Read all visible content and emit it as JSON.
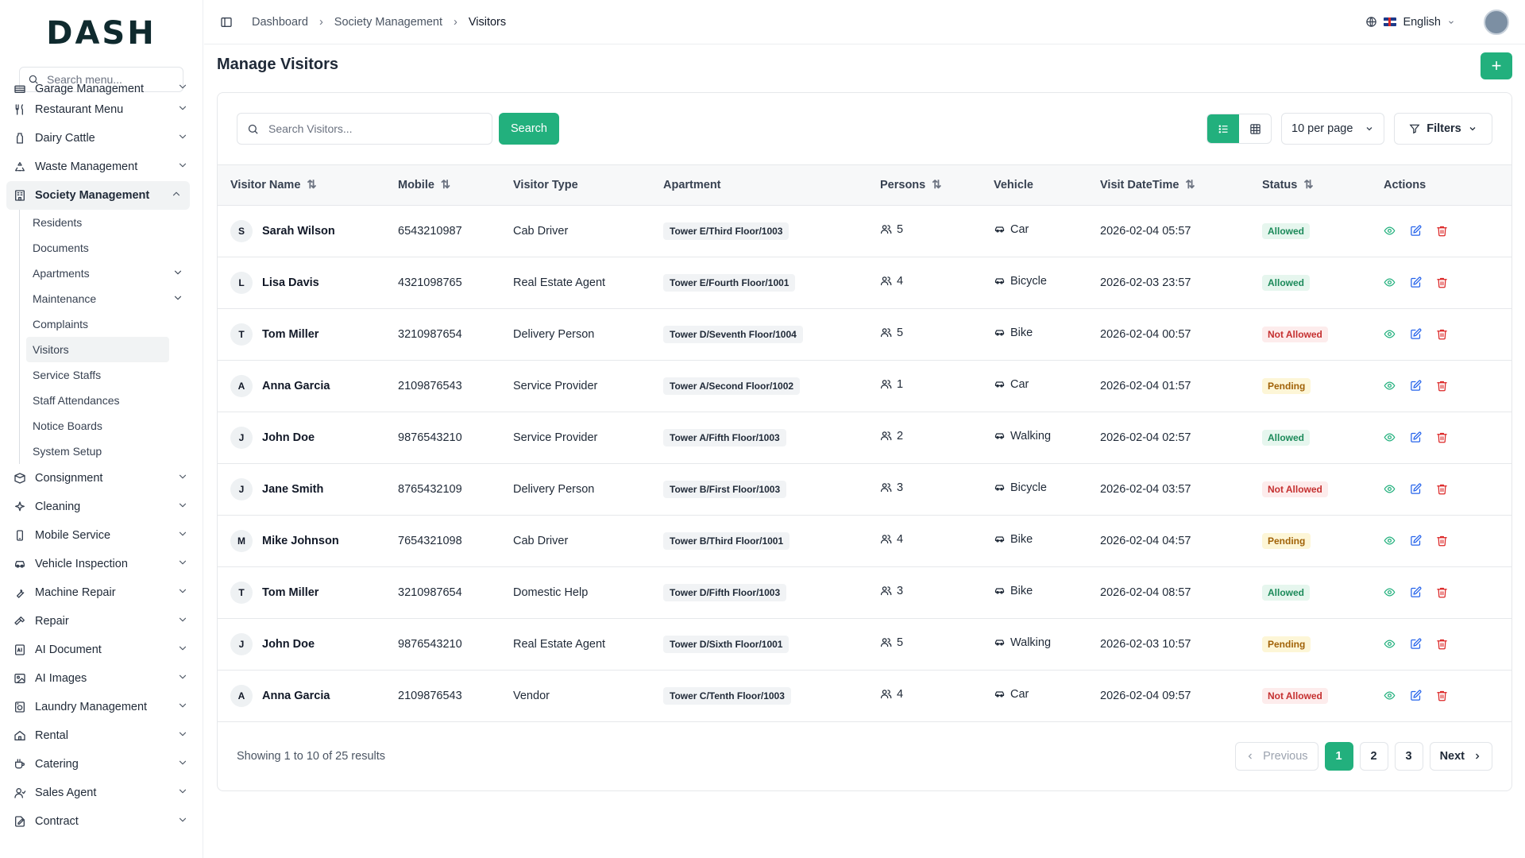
{
  "app": {
    "logo": "DASH"
  },
  "sidebar": {
    "search_placeholder": "Search menu...",
    "items_top": [
      {
        "label": "Garage Management",
        "icon": "garage-icon"
      },
      {
        "label": "Restaurant Menu",
        "icon": "utensils-icon"
      },
      {
        "label": "Dairy Cattle",
        "icon": "milk-bottle-icon"
      },
      {
        "label": "Waste Management",
        "icon": "recycle-icon"
      }
    ],
    "active_item": {
      "label": "Society Management",
      "icon": "building-icon"
    },
    "sub_items": [
      {
        "label": "Residents"
      },
      {
        "label": "Documents"
      },
      {
        "label": "Apartments",
        "has_children": true
      },
      {
        "label": "Maintenance",
        "has_children": true
      },
      {
        "label": "Complaints"
      },
      {
        "label": "Visitors",
        "active": true
      },
      {
        "label": "Service Staffs"
      },
      {
        "label": "Staff Attendances"
      },
      {
        "label": "Notice Boards"
      },
      {
        "label": "System Setup"
      }
    ],
    "items_bottom": [
      {
        "label": "Consignment",
        "icon": "box-icon"
      },
      {
        "label": "Cleaning",
        "icon": "sparkle-icon"
      },
      {
        "label": "Mobile Service",
        "icon": "phone-icon"
      },
      {
        "label": "Vehicle Inspection",
        "icon": "car-icon"
      },
      {
        "label": "Machine Repair",
        "icon": "wrench-icon"
      },
      {
        "label": "Repair",
        "icon": "hammer-icon"
      },
      {
        "label": "AI Document",
        "icon": "ai-document-icon"
      },
      {
        "label": "AI Images",
        "icon": "image-icon"
      },
      {
        "label": "Laundry Management",
        "icon": "washing-machine-icon"
      },
      {
        "label": "Rental",
        "icon": "house-icon"
      },
      {
        "label": "Catering",
        "icon": "cup-icon"
      },
      {
        "label": "Sales Agent",
        "icon": "user-icon"
      },
      {
        "label": "Contract",
        "icon": "contract-icon"
      }
    ]
  },
  "header": {
    "breadcrumb": [
      "Dashboard",
      "Society Management",
      "Visitors"
    ],
    "language": "English"
  },
  "page": {
    "title": "Manage Visitors"
  },
  "toolbar": {
    "search_placeholder": "Search Visitors...",
    "search_button": "Search",
    "per_page": "10 per page",
    "filters": "Filters"
  },
  "table": {
    "columns": [
      "Visitor Name",
      "Mobile",
      "Visitor Type",
      "Apartment",
      "Persons",
      "Vehicle",
      "Visit DateTime",
      "Status",
      "Actions"
    ],
    "rows": [
      {
        "initial": "S",
        "name": "Sarah Wilson",
        "mobile": "6543210987",
        "type": "Cab Driver",
        "apartment": "Tower E/Third Floor/1003",
        "persons": "5",
        "vehicle": "Car",
        "datetime": "2026-02-04 05:57",
        "status": "Allowed"
      },
      {
        "initial": "L",
        "name": "Lisa Davis",
        "mobile": "4321098765",
        "type": "Real Estate Agent",
        "apartment": "Tower E/Fourth Floor/1001",
        "persons": "4",
        "vehicle": "Bicycle",
        "datetime": "2026-02-03 23:57",
        "status": "Allowed"
      },
      {
        "initial": "T",
        "name": "Tom Miller",
        "mobile": "3210987654",
        "type": "Delivery Person",
        "apartment": "Tower D/Seventh Floor/1004",
        "persons": "5",
        "vehicle": "Bike",
        "datetime": "2026-02-04 00:57",
        "status": "Not Allowed"
      },
      {
        "initial": "A",
        "name": "Anna Garcia",
        "mobile": "2109876543",
        "type": "Service Provider",
        "apartment": "Tower A/Second Floor/1002",
        "persons": "1",
        "vehicle": "Car",
        "datetime": "2026-02-04 01:57",
        "status": "Pending"
      },
      {
        "initial": "J",
        "name": "John Doe",
        "mobile": "9876543210",
        "type": "Service Provider",
        "apartment": "Tower A/Fifth Floor/1003",
        "persons": "2",
        "vehicle": "Walking",
        "datetime": "2026-02-04 02:57",
        "status": "Allowed"
      },
      {
        "initial": "J",
        "name": "Jane Smith",
        "mobile": "8765432109",
        "type": "Delivery Person",
        "apartment": "Tower B/First Floor/1003",
        "persons": "3",
        "vehicle": "Bicycle",
        "datetime": "2026-02-04 03:57",
        "status": "Not Allowed"
      },
      {
        "initial": "M",
        "name": "Mike Johnson",
        "mobile": "7654321098",
        "type": "Cab Driver",
        "apartment": "Tower B/Third Floor/1001",
        "persons": "4",
        "vehicle": "Bike",
        "datetime": "2026-02-04 04:57",
        "status": "Pending"
      },
      {
        "initial": "T",
        "name": "Tom Miller",
        "mobile": "3210987654",
        "type": "Domestic Help",
        "apartment": "Tower D/Fifth Floor/1003",
        "persons": "3",
        "vehicle": "Bike",
        "datetime": "2026-02-04 08:57",
        "status": "Allowed"
      },
      {
        "initial": "J",
        "name": "John Doe",
        "mobile": "9876543210",
        "type": "Real Estate Agent",
        "apartment": "Tower D/Sixth Floor/1001",
        "persons": "5",
        "vehicle": "Walking",
        "datetime": "2026-02-03 10:57",
        "status": "Pending"
      },
      {
        "initial": "A",
        "name": "Anna Garcia",
        "mobile": "2109876543",
        "type": "Vendor",
        "apartment": "Tower C/Tenth Floor/1003",
        "persons": "4",
        "vehicle": "Car",
        "datetime": "2026-02-04 09:57",
        "status": "Not Allowed"
      }
    ]
  },
  "pagination": {
    "summary": "Showing 1 to 10 of 25 results",
    "previous": "Previous",
    "next": "Next",
    "pages": [
      "1",
      "2",
      "3"
    ],
    "current": "1"
  },
  "colors": {
    "accent": "#22b07d",
    "allowed": "#1c8a5a",
    "not_allowed": "#c53030",
    "pending": "#a16207"
  }
}
